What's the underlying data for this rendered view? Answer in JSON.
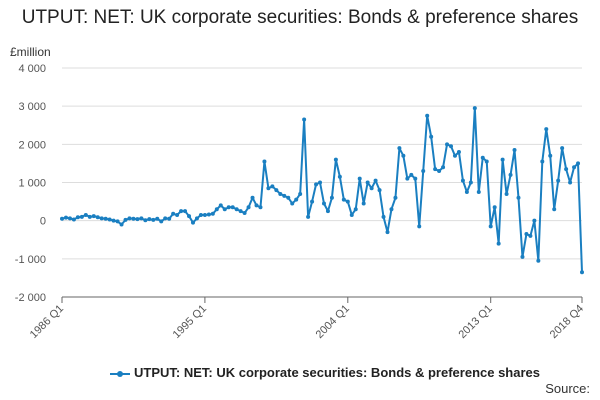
{
  "chart": {
    "title": "UTPUT: NET: UK corporate securities: Bonds & preference shares",
    "unit_label": "£million",
    "source_label": "Source:",
    "legend_label": "UTPUT: NET: UK corporate securities: Bonds & preference shares",
    "line_color": "#1a7fc1",
    "grid_color": "#dddddd"
  },
  "chart_data": {
    "type": "line",
    "title": "UTPUT: NET: UK corporate securities: Bonds & preference shares",
    "ylabel": "£million",
    "xlabel": "",
    "ylim": [
      -2000,
      4000
    ],
    "yticks": [
      -2000,
      -1000,
      0,
      1000,
      2000,
      3000,
      4000
    ],
    "ytick_labels": [
      "-2 000",
      "-1 000",
      "0",
      "1 000",
      "2 000",
      "3 000",
      "4 000"
    ],
    "xtick_labels": [
      "1986 Q1",
      "1995 Q1",
      "2004 Q1",
      "2013 Q1",
      "2018 Q4"
    ],
    "xtick_indices": [
      0,
      36,
      72,
      108,
      131
    ],
    "grid": "horizontal",
    "legend_position": "bottom",
    "series": [
      {
        "name": "UTPUT: NET: UK corporate securities: Bonds & preference shares",
        "start_period": "1986 Q1",
        "end_period": "2018 Q4",
        "values": [
          50,
          80,
          60,
          30,
          90,
          100,
          150,
          100,
          120,
          90,
          60,
          50,
          30,
          0,
          -20,
          -100,
          20,
          60,
          50,
          40,
          60,
          10,
          40,
          20,
          50,
          -20,
          60,
          50,
          180,
          150,
          250,
          250,
          120,
          -50,
          60,
          150,
          150,
          160,
          180,
          300,
          400,
          300,
          350,
          350,
          300,
          250,
          200,
          350,
          600,
          400,
          350,
          1550,
          850,
          900,
          800,
          700,
          650,
          600,
          450,
          550,
          700,
          2650,
          100,
          500,
          950,
          1000,
          450,
          250,
          600,
          1600,
          1150,
          550,
          500,
          150,
          300,
          1100,
          450,
          1000,
          850,
          1050,
          800,
          100,
          -300,
          300,
          600,
          1900,
          1700,
          1100,
          1200,
          1100,
          -150,
          1300,
          2750,
          2200,
          1350,
          1300,
          1400,
          2000,
          1950,
          1700,
          1800,
          1050,
          750,
          1000,
          2950,
          750,
          1650,
          1550,
          -150,
          350,
          -600,
          1600,
          700,
          1200,
          1850,
          600,
          -950,
          -350,
          -400,
          0,
          -1050,
          1550,
          2400,
          1700,
          300,
          1050,
          1900,
          1350,
          1000,
          1400,
          1500,
          -1350
        ]
      }
    ]
  }
}
